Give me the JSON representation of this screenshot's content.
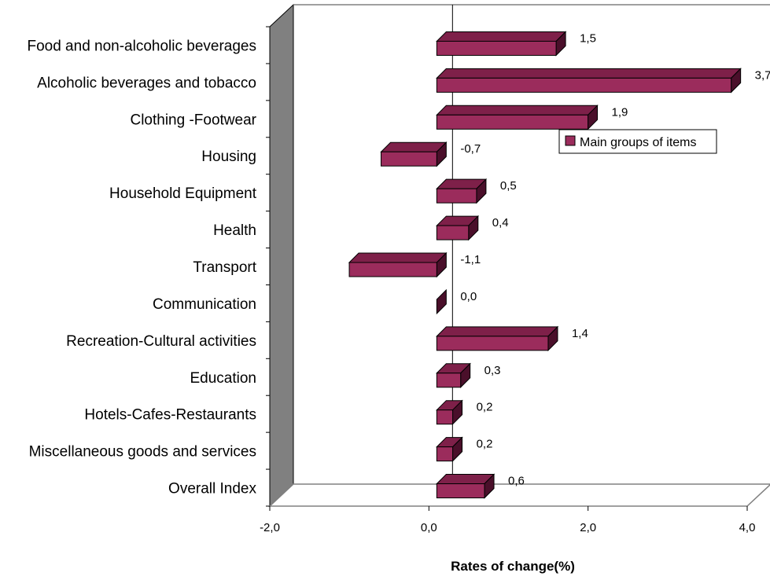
{
  "chart_data": {
    "type": "bar",
    "orientation": "horizontal",
    "three_d": true,
    "categories": [
      "Food and non-alcoholic beverages",
      "Alcoholic beverages and tobacco",
      "Clothing -Footwear",
      "Housing",
      "Household Equipment",
      "Health",
      "Transport",
      "Communication",
      "Recreation-Cultural activities",
      "Education",
      "Hotels-Cafes-Restaurants",
      "Miscellaneous goods and services",
      "Overall Index"
    ],
    "series": [
      {
        "name": "Main groups of items",
        "values": [
          1.5,
          3.7,
          1.9,
          -0.7,
          0.5,
          0.4,
          -1.1,
          0.0,
          1.4,
          0.3,
          0.2,
          0.2,
          0.6
        ],
        "value_labels": [
          "1,5",
          "3,7",
          "1,9",
          "-0,7",
          "0,5",
          "0,4",
          "-1,1",
          "0,0",
          "1,4",
          "0,3",
          "0,2",
          "0,2",
          "0,6"
        ],
        "color": "#9b2c5c"
      }
    ],
    "xlabel": "Rates of change(%)",
    "xlim": [
      -2.0,
      4.0
    ],
    "xticks": [
      -2.0,
      0.0,
      2.0,
      4.0
    ],
    "xtick_labels": [
      "-2,0",
      "0,0",
      "2,0",
      "4,0"
    ],
    "legend": {
      "entry": "Main groups of items",
      "position": "right"
    },
    "grid": false,
    "colors": {
      "bar_front": "#9b2c5c",
      "bar_top": "#7e2049",
      "bar_side": "#4a0f2a",
      "wall": "#808080",
      "floor_edge": "#808080"
    }
  }
}
